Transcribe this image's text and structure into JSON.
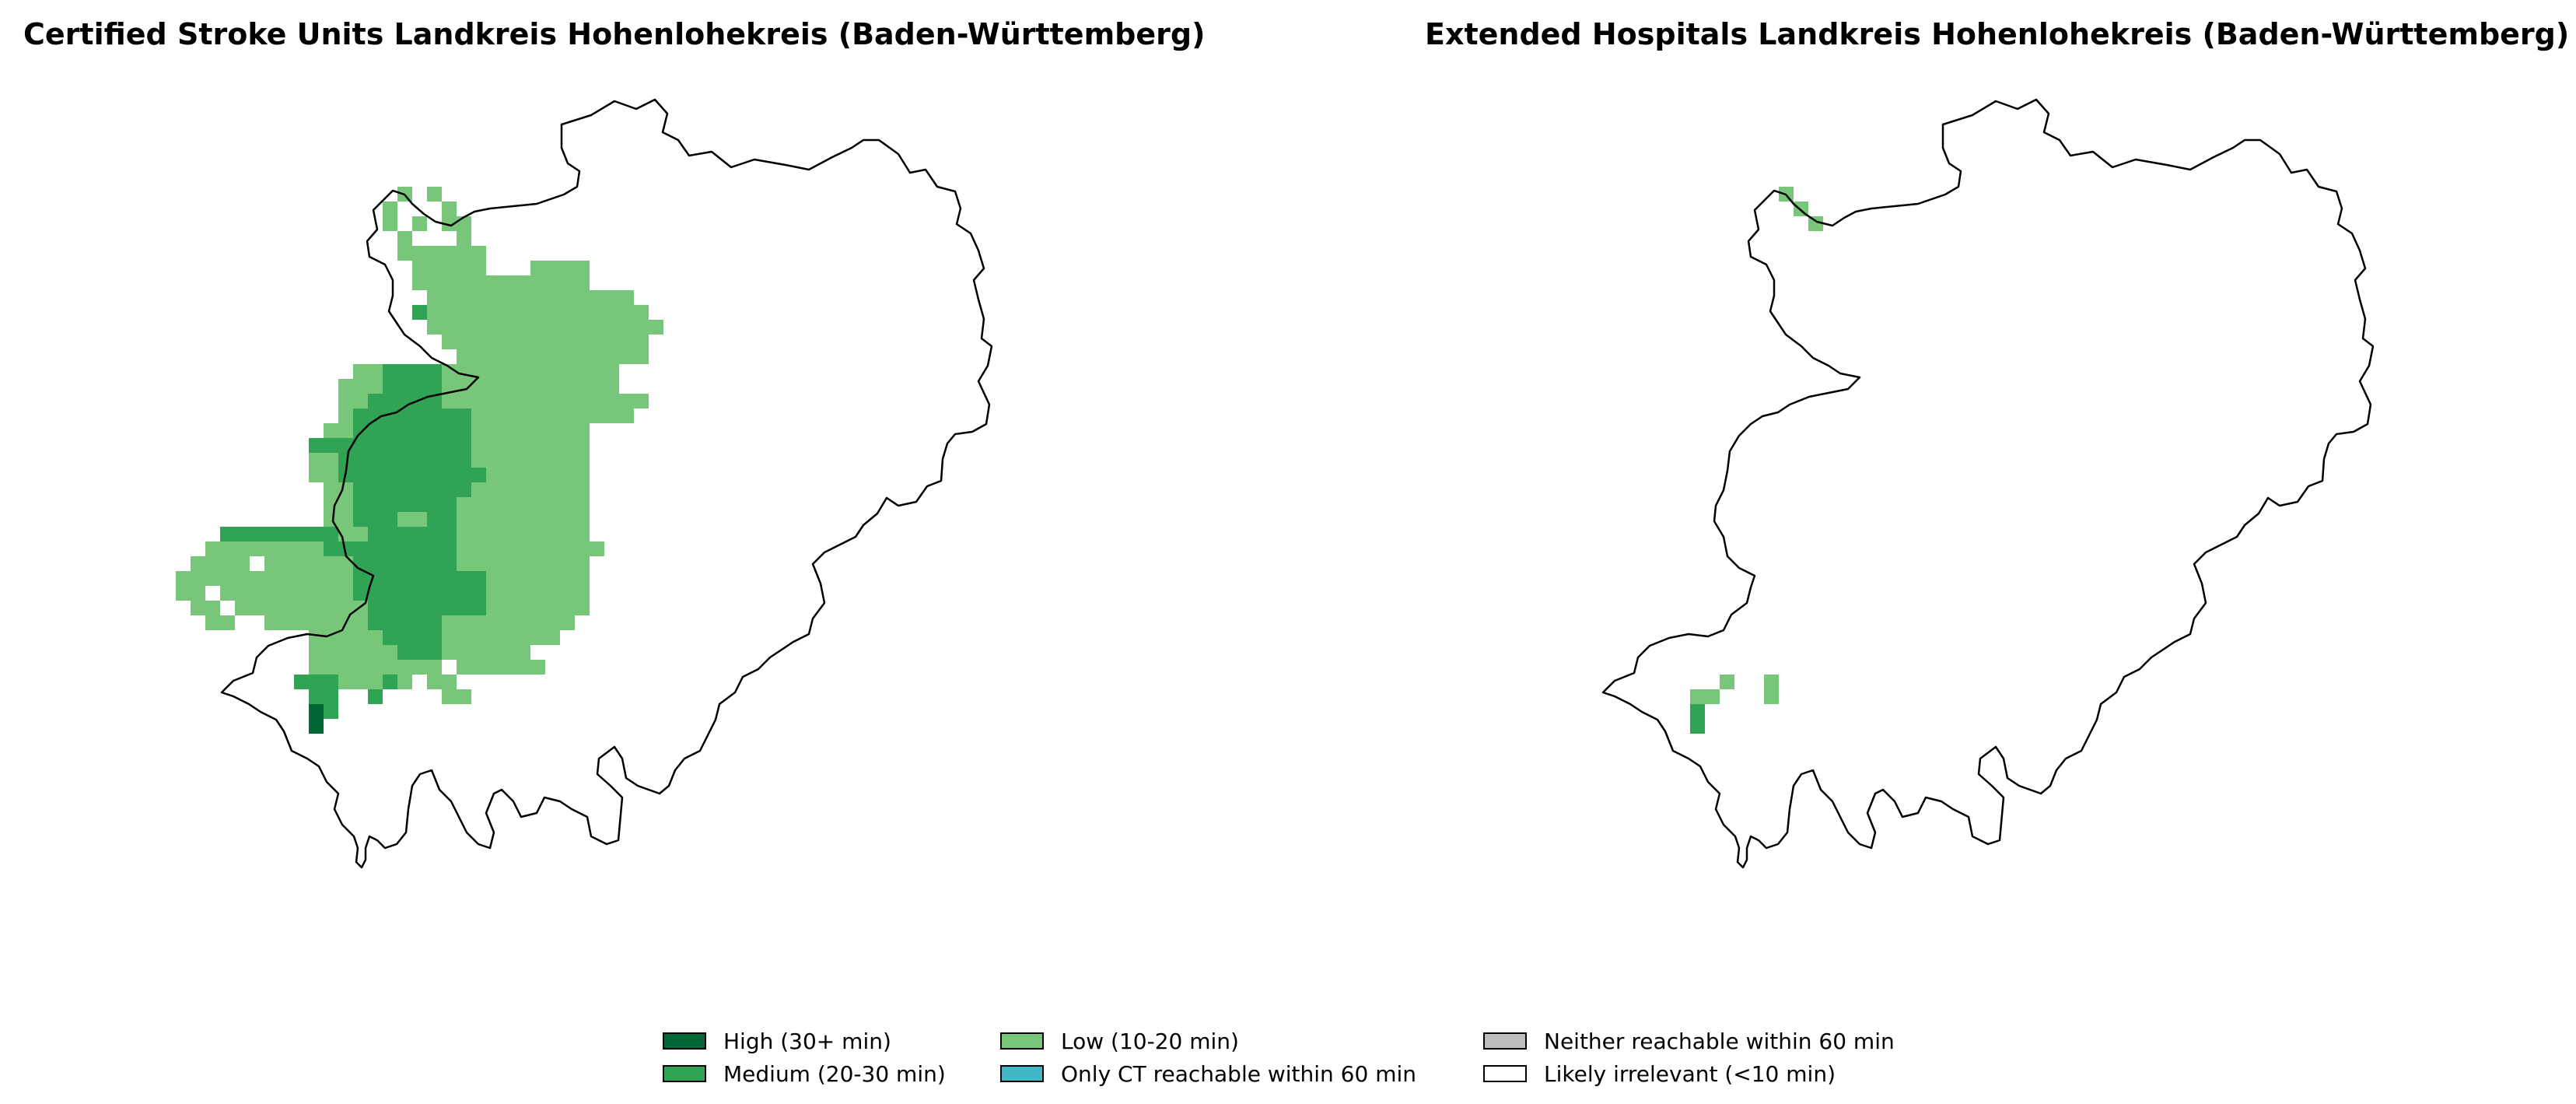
{
  "maps": {
    "left": {
      "title": "Certified Stroke Units Landkreis Hohenlohekreis (Baden-Württemberg)"
    },
    "right": {
      "title": "Extended Hospitals Landkreis Hohenlohekreis (Baden-Württemberg)"
    }
  },
  "legend": {
    "items": [
      {
        "key": "high",
        "label": "High (30+ min)",
        "color": "#006837"
      },
      {
        "key": "medium",
        "label": "Medium (20-30 min)",
        "color": "#31a354"
      },
      {
        "key": "low",
        "label": "Low (10-20 min)",
        "color": "#78c679"
      },
      {
        "key": "ct_only",
        "label": "Only CT reachable within 60 min",
        "color": "#41b6c4"
      },
      {
        "key": "neither",
        "label": "Neither reachable within 60 min",
        "color": "#bdbdbd"
      },
      {
        "key": "irrelevant",
        "label": "Likely irrelevant (<10 min)",
        "color": "#ffffff"
      }
    ]
  }
}
